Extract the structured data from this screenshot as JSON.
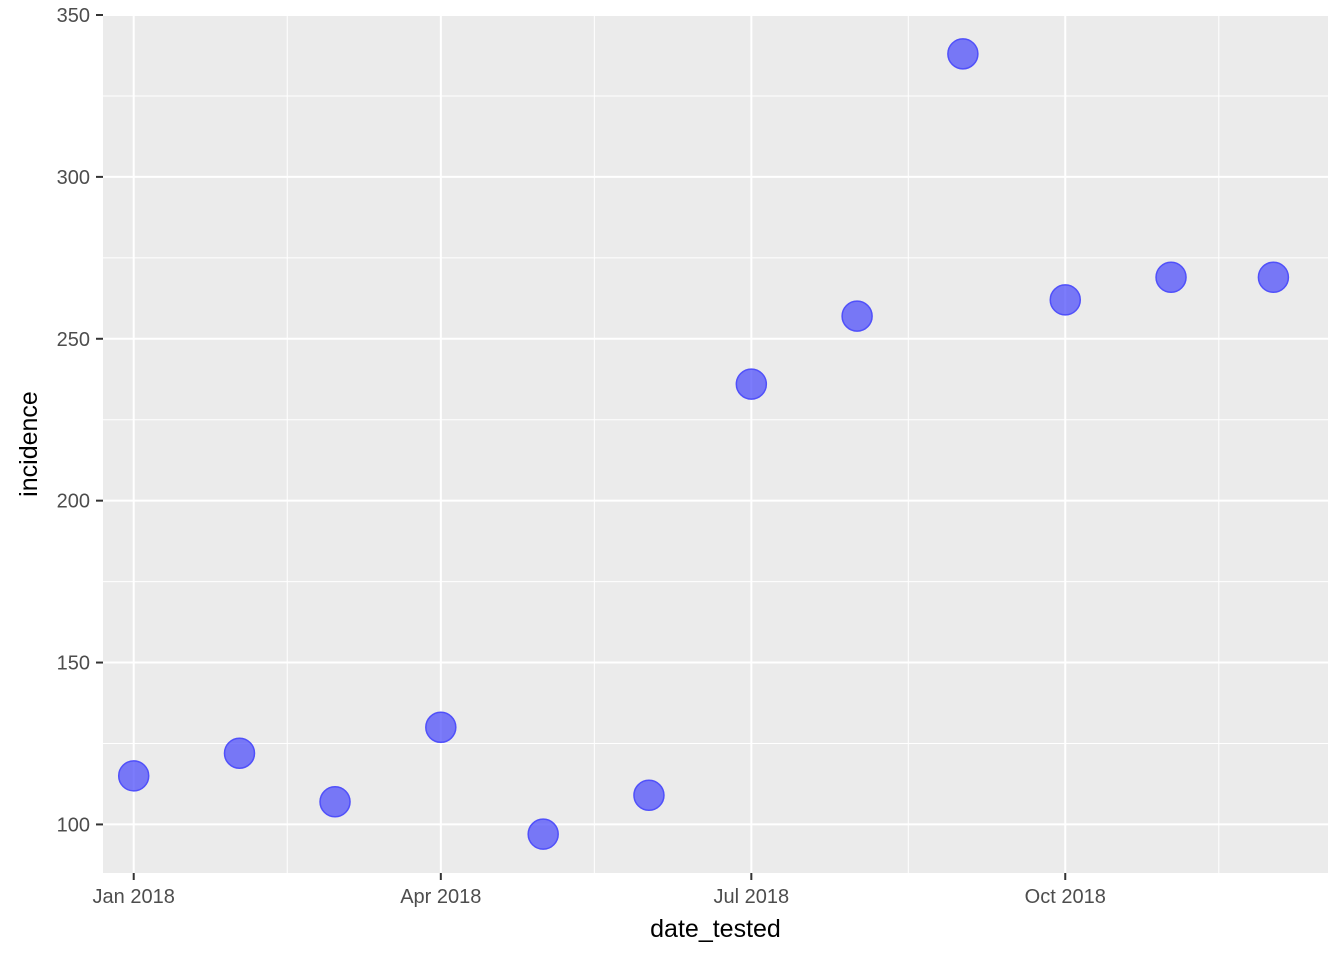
{
  "chart_data": {
    "type": "scatter",
    "xlabel": "date_tested",
    "ylabel": "incidence",
    "x_axis_type": "date",
    "xlim": [
      "2017-12-23",
      "2018-12-17"
    ],
    "ylim": [
      85,
      350
    ],
    "x_ticks": [
      {
        "date": "2018-01-01",
        "label": "Jan 2018"
      },
      {
        "date": "2018-04-01",
        "label": "Apr 2018"
      },
      {
        "date": "2018-07-01",
        "label": "Jul 2018"
      },
      {
        "date": "2018-10-01",
        "label": "Oct 2018"
      }
    ],
    "x_minor_gridlines": [
      "2018-02-15",
      "2018-05-16",
      "2018-08-16",
      "2018-11-15"
    ],
    "y_ticks": [
      100,
      150,
      200,
      250,
      300,
      350
    ],
    "y_minor_gridlines": [
      125,
      175,
      225,
      275,
      325
    ],
    "grid": true,
    "legend": "none",
    "point_color": "#5050FA",
    "panel_background": "#EBEBEB",
    "points": [
      {
        "x": "2018-01-01",
        "y": 115
      },
      {
        "x": "2018-02-01",
        "y": 122
      },
      {
        "x": "2018-03-01",
        "y": 107
      },
      {
        "x": "2018-04-01",
        "y": 130
      },
      {
        "x": "2018-05-01",
        "y": 97
      },
      {
        "x": "2018-06-01",
        "y": 109
      },
      {
        "x": "2018-07-01",
        "y": 236
      },
      {
        "x": "2018-08-01",
        "y": 257
      },
      {
        "x": "2018-09-01",
        "y": 338
      },
      {
        "x": "2018-10-01",
        "y": 262
      },
      {
        "x": "2018-11-01",
        "y": 269
      },
      {
        "x": "2018-12-01",
        "y": 269
      }
    ]
  }
}
